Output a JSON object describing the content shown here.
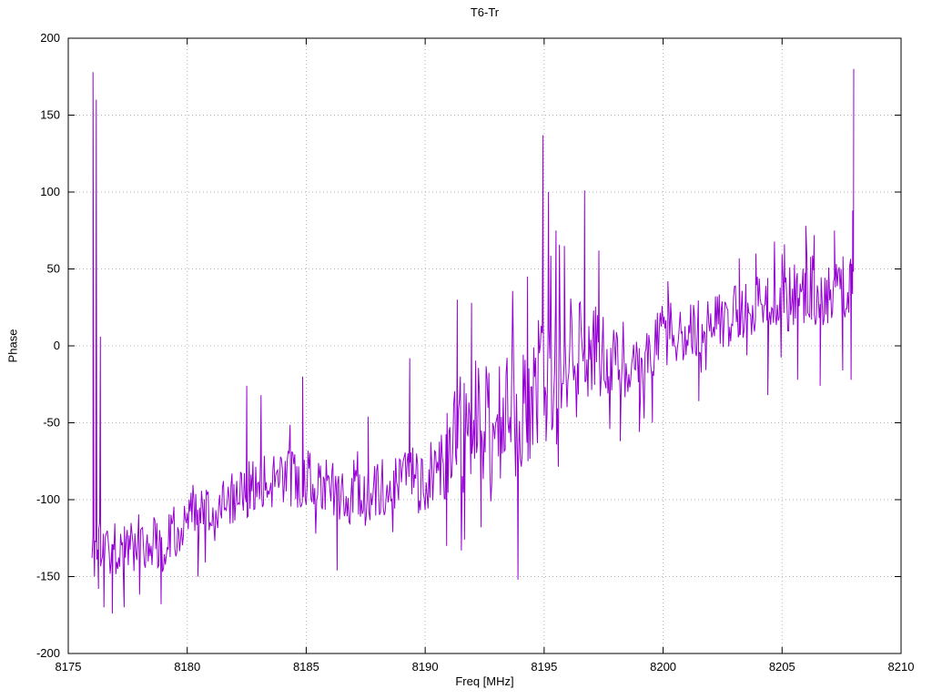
{
  "chart_data": {
    "type": "line",
    "title": "T6-Tr",
    "xlabel": "Freq [MHz]",
    "ylabel": "Phase",
    "xlim": [
      8175,
      8210
    ],
    "ylim": [
      -200,
      200
    ],
    "xticks": [
      8175,
      8180,
      8185,
      8190,
      8195,
      8200,
      8205,
      8210
    ],
    "yticks": [
      -200,
      -150,
      -100,
      -50,
      0,
      50,
      100,
      150,
      200
    ],
    "grid": true,
    "legend": "none",
    "line_color": "#9400d3",
    "grid_color": "#b4b4b4",
    "border_color": "#000000",
    "x_range_data": [
      8176.0,
      8208.0
    ],
    "sample_step": 0.04,
    "noise_seed": 1337,
    "trend": [
      [
        8176.0,
        -128
      ],
      [
        8177,
        -132
      ],
      [
        8178,
        -126
      ],
      [
        8179,
        -128
      ],
      [
        8180,
        -108
      ],
      [
        8181,
        -114
      ],
      [
        8182,
        -100
      ],
      [
        8183,
        -88
      ],
      [
        8184,
        -86
      ],
      [
        8185,
        -86
      ],
      [
        8186,
        -92
      ],
      [
        8187,
        -100
      ],
      [
        8188,
        -94
      ],
      [
        8189,
        -84
      ],
      [
        8190,
        -86
      ],
      [
        8190.8,
        -78
      ],
      [
        8191.5,
        -60
      ],
      [
        8192,
        -52
      ],
      [
        8193,
        -56
      ],
      [
        8194,
        -40
      ],
      [
        8195,
        -18
      ],
      [
        8196,
        -6
      ],
      [
        8197,
        -2
      ],
      [
        8198,
        -16
      ],
      [
        8199,
        -18
      ],
      [
        8200,
        8
      ],
      [
        8201,
        10
      ],
      [
        8202,
        14
      ],
      [
        8203,
        20
      ],
      [
        8204,
        28
      ],
      [
        8205,
        30
      ],
      [
        8206,
        38
      ],
      [
        8207,
        34
      ],
      [
        8208,
        42
      ]
    ],
    "noise_amplitude": [
      [
        8176,
        16
      ],
      [
        8178,
        20
      ],
      [
        8180,
        20
      ],
      [
        8183,
        18
      ],
      [
        8186,
        20
      ],
      [
        8189,
        20
      ],
      [
        8190.5,
        24
      ],
      [
        8191.5,
        42
      ],
      [
        8192.5,
        48
      ],
      [
        8193.5,
        45
      ],
      [
        8194.5,
        45
      ],
      [
        8195.5,
        42
      ],
      [
        8196.5,
        34
      ],
      [
        8197.5,
        28
      ],
      [
        8198.5,
        22
      ],
      [
        8200,
        20
      ],
      [
        8202,
        18
      ],
      [
        8203.5,
        20
      ],
      [
        8205,
        22
      ],
      [
        8206,
        24
      ],
      [
        8207,
        22
      ],
      [
        8208,
        20
      ]
    ],
    "spikes": [
      [
        8176.04,
        178
      ],
      [
        8176.1,
        -150
      ],
      [
        8176.18,
        160
      ],
      [
        8176.27,
        -158
      ],
      [
        8176.35,
        6
      ],
      [
        8176.5,
        -170
      ],
      [
        8176.85,
        -174
      ],
      [
        8177.35,
        -170
      ],
      [
        8178.9,
        -168
      ],
      [
        8180.45,
        -150
      ],
      [
        8182.5,
        -26
      ],
      [
        8183.1,
        -32
      ],
      [
        8184.85,
        -20
      ],
      [
        8186.3,
        -146
      ],
      [
        8187.6,
        -46
      ],
      [
        8189.35,
        -8
      ],
      [
        8190.9,
        -130
      ],
      [
        8191.35,
        30
      ],
      [
        8191.65,
        -126
      ],
      [
        8191.95,
        28
      ],
      [
        8192.35,
        -118
      ],
      [
        8193.9,
        -152
      ],
      [
        8194.3,
        45
      ],
      [
        8194.95,
        137
      ],
      [
        8195.08,
        -62
      ],
      [
        8195.18,
        100
      ],
      [
        8195.5,
        75
      ],
      [
        8195.85,
        65
      ],
      [
        8196.7,
        101
      ],
      [
        8197.3,
        62
      ],
      [
        8198.2,
        -62
      ],
      [
        8199.0,
        -56
      ],
      [
        8199.55,
        -50
      ],
      [
        8200.2,
        42
      ],
      [
        8201.5,
        -36
      ],
      [
        8203.2,
        57
      ],
      [
        8203.9,
        60
      ],
      [
        8204.4,
        -32
      ],
      [
        8205.1,
        66
      ],
      [
        8205.65,
        -22
      ],
      [
        8206.0,
        78
      ],
      [
        8206.35,
        72
      ],
      [
        8206.6,
        -26
      ],
      [
        8207.2,
        75
      ],
      [
        8207.55,
        -16
      ],
      [
        8207.9,
        -22
      ],
      [
        8207.97,
        88
      ],
      [
        8208.01,
        180
      ]
    ]
  }
}
